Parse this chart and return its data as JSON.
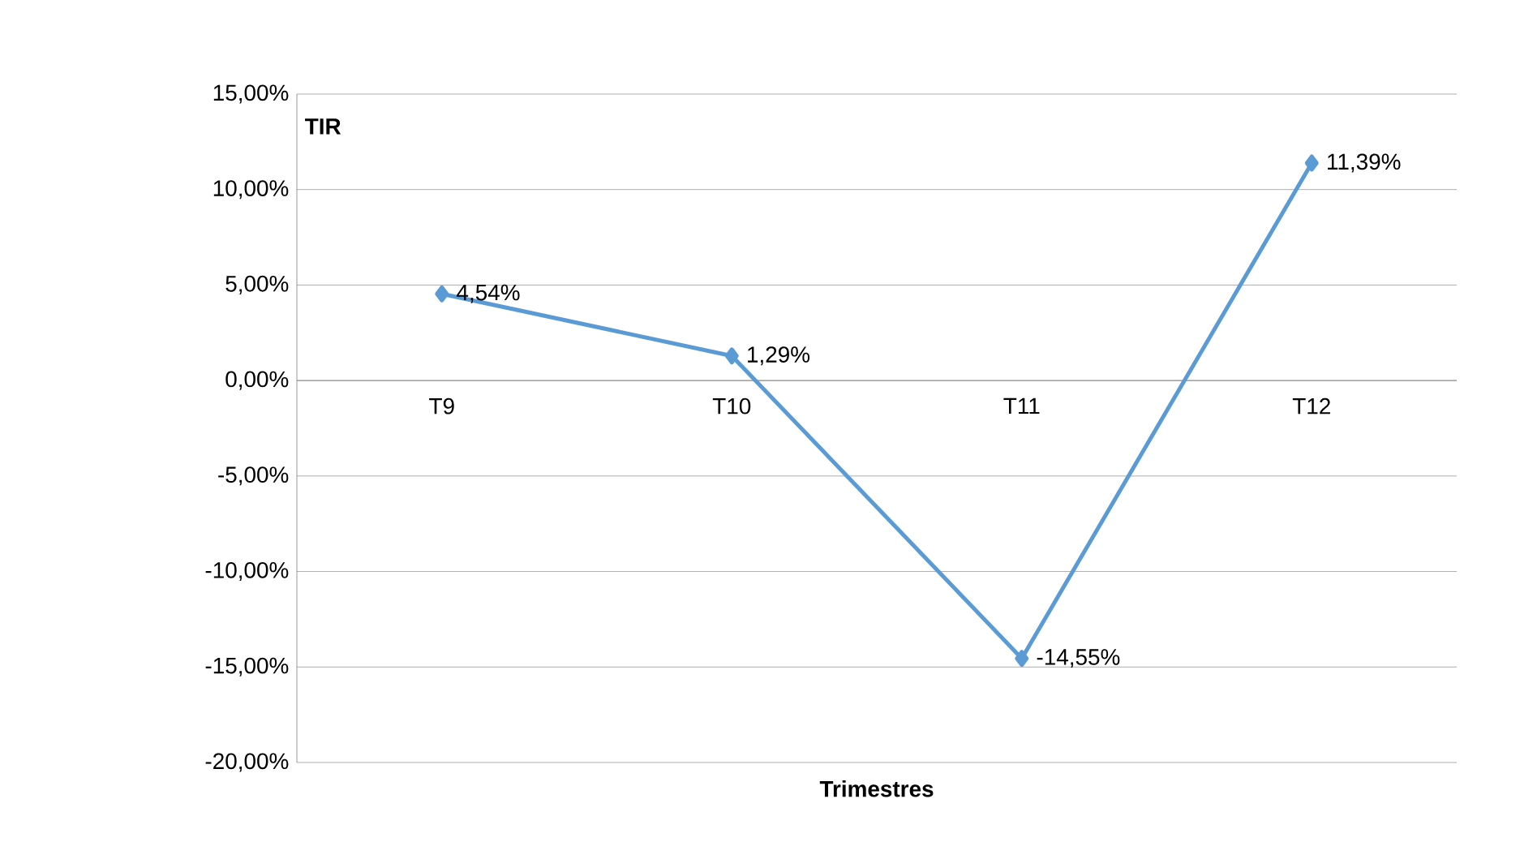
{
  "chart_data": {
    "type": "line",
    "xlabel": "Trimestres",
    "ylabel": "TIR",
    "categories": [
      "T9",
      "T10",
      "T11",
      "T12"
    ],
    "series": [
      {
        "color": "#5b9bd5",
        "values": [
          4.54,
          1.29,
          -14.55,
          11.39
        ],
        "value_labels": [
          "4,54%",
          "1,29%",
          "-14,55%",
          "11,39%"
        ]
      }
    ],
    "ylim": [
      -20,
      15
    ],
    "yticks": [
      {
        "value": -20,
        "label": "-20,00%"
      },
      {
        "value": -15,
        "label": "-15,00%"
      },
      {
        "value": -10,
        "label": "-10,00%"
      },
      {
        "value": -5,
        "label": "-5,00%"
      },
      {
        "value": 0,
        "label": "0,00%"
      },
      {
        "value": 5,
        "label": "5,00%"
      },
      {
        "value": 10,
        "label": "10,00%"
      },
      {
        "value": 15,
        "label": "15,00%"
      }
    ],
    "grid": "y",
    "marker": "diamond",
    "line_style": "solid"
  }
}
